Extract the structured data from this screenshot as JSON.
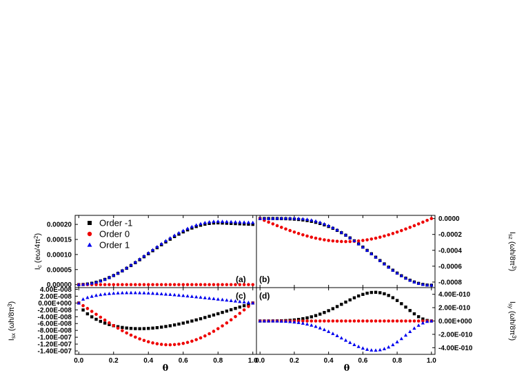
{
  "colors": {
    "order_m1": "#000000",
    "order_0": "#ee0000",
    "order_1": "#0000ee"
  },
  "legend": [
    {
      "name": "Order -1",
      "marker": "square"
    },
    {
      "name": "Order 0",
      "marker": "circle"
    },
    {
      "name": "Order 1",
      "marker": "triangle"
    }
  ],
  "xlabel_left": "θ",
  "xlabel_right": "θ",
  "chart_data": [
    {
      "id": "a",
      "type": "scatter",
      "panel_label": "(a)",
      "ylabel": "I_c (eω/4π²)",
      "ylabel_main": "I",
      "ylabel_sub": "c",
      "ylabel_rest": "(eω/4π",
      "ylabel_sup": "2",
      "ylabel_end": ")",
      "xlim": [
        0,
        1
      ],
      "ylim": [
        -1e-05,
        0.00023
      ],
      "xticks": [
        "0.0",
        "0.2",
        "0.4",
        "0.6",
        "0.8",
        "1.0"
      ],
      "yticks": [
        "0.00000",
        "0.00005",
        "0.00010",
        "0.00015",
        "0.00020"
      ],
      "ytick_values": [
        0,
        5e-05,
        0.0001,
        0.00015,
        0.0002
      ],
      "series": [
        {
          "name": "Order -1",
          "curve": {
            "form": "sigmoid",
            "amp": 0.000205,
            "peak": 0.8,
            "tail": 0.0002
          }
        },
        {
          "name": "Order 0",
          "curve": {
            "form": "zero"
          }
        },
        {
          "name": "Order 1",
          "curve": {
            "form": "sigmoid",
            "amp": 0.00021,
            "peak": 0.8,
            "tail": 0.000206
          }
        }
      ]
    },
    {
      "id": "b",
      "type": "scatter",
      "panel_label": "(b)",
      "ylabel": "I_sz (ωh/8π³)",
      "ylabel_main": "I",
      "ylabel_sub": "sz",
      "ylabel_rest": "(ωh/8π",
      "ylabel_sup": "3",
      "ylabel_end": ")",
      "xlim": [
        0,
        1
      ],
      "ylim": [
        -0.00087,
        4e-05
      ],
      "xticks": [
        "0.0",
        "0.2",
        "0.4",
        "0.6",
        "0.8",
        "1.0"
      ],
      "yticks": [
        "0.0000",
        "-0.0002",
        "-0.0004",
        "-0.0006",
        "-0.0008"
      ],
      "ytick_values": [
        0,
        -0.0002,
        -0.0004,
        -0.0006,
        -0.0008
      ],
      "series": [
        {
          "name": "Order -1",
          "curve": {
            "form": "fall",
            "amp": -0.00084
          }
        },
        {
          "name": "Order 0",
          "curve": {
            "form": "dip",
            "amp": -0.00029,
            "center": 0.55
          }
        },
        {
          "name": "Order 1",
          "curve": {
            "form": "bump_fall",
            "amp": -0.00084,
            "bump": 1.5e-05,
            "bump_at": 0.3
          }
        }
      ]
    },
    {
      "id": "c",
      "type": "scatter",
      "panel_label": "(c)",
      "ylabel": "I_sx (ωh/8π³)",
      "ylabel_main": "I",
      "ylabel_sub": "sx",
      "ylabel_rest": "(ωh/8π",
      "ylabel_sup": "3",
      "ylabel_end": ")",
      "xlim": [
        0,
        1
      ],
      "ylim": [
        -1.5e-07,
        4.5e-08
      ],
      "xticks": [
        "0.0",
        "0.2",
        "0.4",
        "0.6",
        "0.8",
        "1.0"
      ],
      "yticks": [
        "4.00E-008",
        "2.00E-008",
        "0.00E+000",
        "-2.00E-008",
        "-4.00E-008",
        "-6.00E-008",
        "-8.00E-008",
        "-1.00E-007",
        "-1.20E-007",
        "-1.40E-007"
      ],
      "ytick_values": [
        4e-08,
        2e-08,
        0,
        -2e-08,
        -4e-08,
        -6e-08,
        -8e-08,
        -1e-07,
        -1.2e-07,
        -1.4e-07
      ],
      "series": [
        {
          "name": "Order -1",
          "curve": {
            "form": "skew_dip",
            "amp": -7.5e-08,
            "center": 0.35
          }
        },
        {
          "name": "Order 0",
          "curve": {
            "form": "skew_dip",
            "amp": -1.22e-07,
            "center": 0.52
          }
        },
        {
          "name": "Order 1",
          "curve": {
            "form": "skew_bump",
            "amp": 3e-08,
            "center": 0.3,
            "tail": 0.2
          }
        }
      ]
    },
    {
      "id": "d",
      "type": "scatter",
      "panel_label": "(d)",
      "ylabel": "I_sy (ωh/8π³)",
      "ylabel_main": "I",
      "ylabel_sub": "sy",
      "ylabel_rest": "(ωh/8π",
      "ylabel_sup": "3",
      "ylabel_end": ")",
      "xlim": [
        0,
        1
      ],
      "ylim": [
        -5e-10,
        5e-10
      ],
      "xticks": [
        "0.0",
        "0.2",
        "0.4",
        "0.6",
        "0.8",
        "1.0"
      ],
      "yticks": [
        "4.00E-010",
        "2.00E-010",
        "0.00E+000",
        "-2.00E-010",
        "-4.00E-010"
      ],
      "ytick_values": [
        4e-10,
        2e-10,
        0,
        -2e-10,
        -4e-10
      ],
      "series": [
        {
          "name": "Order -1",
          "curve": {
            "form": "late_bump",
            "amp": 4.3e-10,
            "center": 0.67
          }
        },
        {
          "name": "Order 0",
          "curve": {
            "form": "zero"
          }
        },
        {
          "name": "Order 1",
          "curve": {
            "form": "late_bump",
            "amp": -4.4e-10,
            "center": 0.67
          }
        }
      ]
    }
  ]
}
